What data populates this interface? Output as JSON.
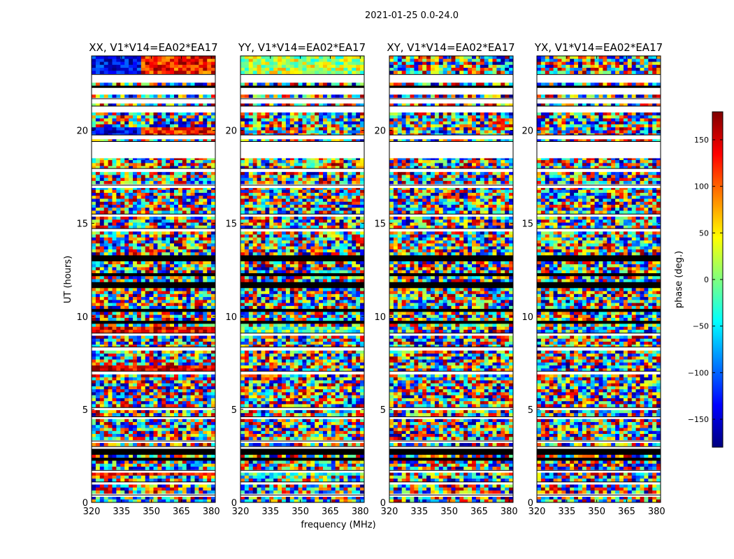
{
  "chart_data": {
    "type": "heatmap",
    "suptitle": "2021-01-25 0.0-24.0",
    "xlabel": "frequency (MHz)",
    "ylabel": "UT (hours)",
    "xlim": [
      320,
      382
    ],
    "ylim": [
      0,
      24
    ],
    "xticks": [
      320,
      335,
      350,
      365,
      380
    ],
    "yticks": [
      0,
      5,
      10,
      15,
      20
    ],
    "colorbar": {
      "label": "phase (deg.)",
      "range": [
        -180,
        180
      ],
      "ticks": [
        150,
        100,
        50,
        0,
        -50,
        -100,
        -150
      ],
      "tick_labels": [
        "150",
        "100",
        "50",
        "0",
        "−50",
        "−100",
        "−150"
      ],
      "colormap": "jet"
    },
    "panels": [
      {
        "title": "XX, V1*V14=EA02*EA17",
        "style": "coherent-xx"
      },
      {
        "title": "YY, V1*V14=EA02*EA17",
        "style": "coherent-yy"
      },
      {
        "title": "XY, V1*V14=EA02*EA17",
        "style": "noise"
      },
      {
        "title": "YX, V1*V14=EA02*EA17",
        "style": "noise"
      }
    ],
    "blank_ut_intervals": [
      [
        22.6,
        23.0
      ],
      [
        22.0,
        22.3
      ],
      [
        21.5,
        21.7
      ],
      [
        21.0,
        21.3
      ],
      [
        19.6,
        19.75
      ],
      [
        18.5,
        19.4
      ],
      [
        17.8,
        17.95
      ],
      [
        16.9,
        17.05
      ],
      [
        15.4,
        15.5
      ],
      [
        14.6,
        14.72
      ],
      [
        9.0,
        9.1
      ],
      [
        8.2,
        8.35
      ],
      [
        6.9,
        7.05
      ],
      [
        5.0,
        5.1
      ],
      [
        4.5,
        4.6
      ],
      [
        3.2,
        3.3
      ],
      [
        2.9,
        3.0
      ],
      [
        1.6,
        1.72
      ],
      [
        1.0,
        1.1
      ],
      [
        0.3,
        0.4
      ]
    ],
    "flagged_ut_intervals": [
      [
        22.2,
        22.4
      ],
      [
        21.6,
        21.75
      ],
      [
        12.9,
        13.2
      ],
      [
        12.2,
        12.35
      ],
      [
        11.6,
        11.9
      ],
      [
        10.3,
        10.45
      ],
      [
        9.65,
        9.8
      ],
      [
        2.6,
        2.85
      ],
      [
        2.3,
        2.45
      ]
    ]
  }
}
